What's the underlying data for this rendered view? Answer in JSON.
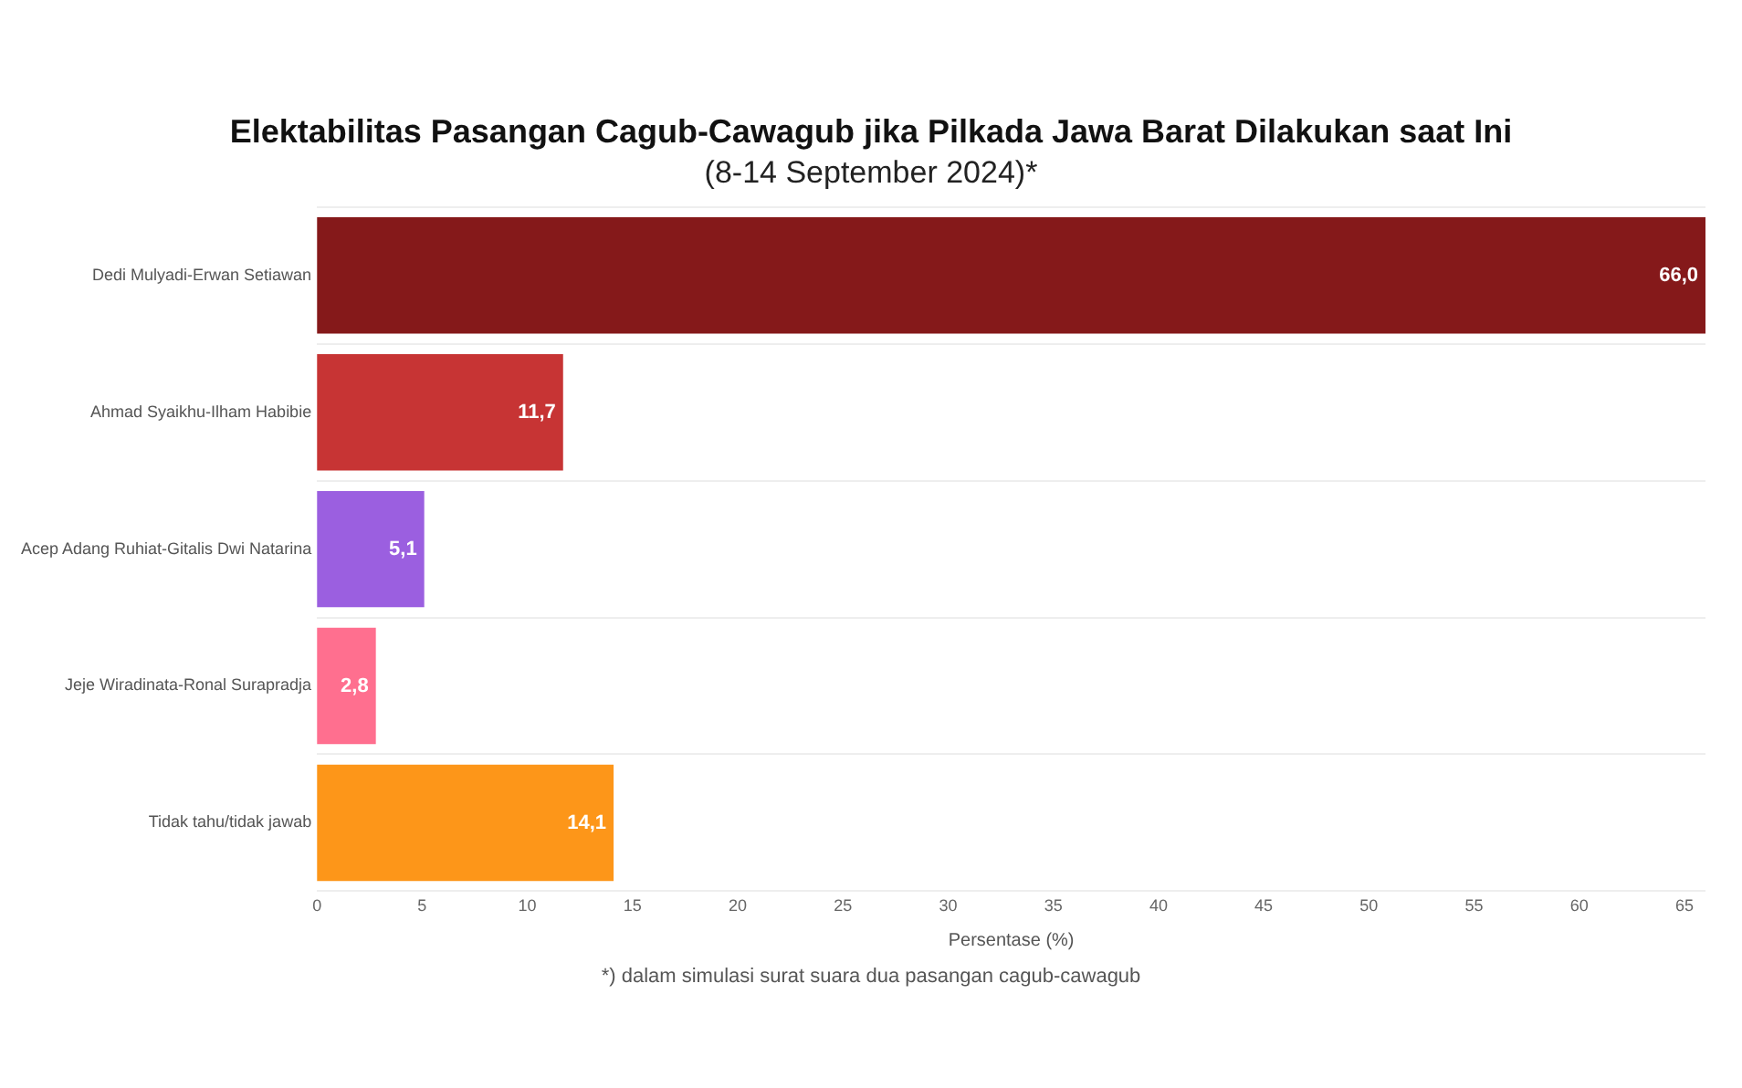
{
  "chart_data": {
    "type": "bar",
    "orientation": "horizontal",
    "title": "Elektabilitas Pasangan Cagub-Cawagub jika Pilkada Jawa Barat Dilakukan saat Ini",
    "subtitle": "(8-14 September 2024)*",
    "xlabel": "Persentase (%)",
    "categories": [
      "Dedi Mulyadi-Erwan Setiawan",
      "Ahmad Syaikhu-Ilham Habibie",
      "Acep Adang Ruhiat-Gitalis Dwi Natarina",
      "Jeje Wiradinata-Ronal Surapradja",
      "Tidak tahu/tidak jawab"
    ],
    "values": [
      66.0,
      11.7,
      5.1,
      2.8,
      14.1
    ],
    "value_labels": [
      "66,0",
      "11,7",
      "5,1",
      "2,8",
      "14,1"
    ],
    "colors": [
      "#85191a",
      "#c73434",
      "#9b5fe0",
      "#ff6f8f",
      "#fd9619"
    ],
    "xlim": [
      0,
      66
    ],
    "xticks": [
      0,
      5,
      10,
      15,
      20,
      25,
      30,
      35,
      40,
      45,
      50,
      55,
      60,
      65
    ],
    "grid": "y",
    "legend": false,
    "annotations": [
      "*) dalam simulasi surat suara dua pasangan cagub-cawagub"
    ]
  }
}
